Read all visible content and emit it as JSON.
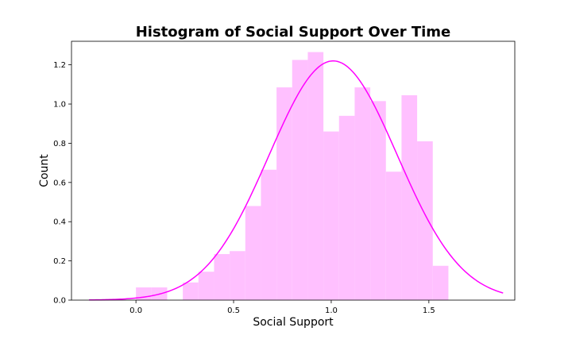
{
  "chart_data": {
    "type": "bar",
    "title": "Histogram of Social Support Over Time",
    "xlabel": "Social Support",
    "ylabel": "Count",
    "xlim": [
      -0.33,
      1.94
    ],
    "ylim": [
      0,
      1.32
    ],
    "xticks": [
      0.0,
      0.5,
      1.0,
      1.5
    ],
    "xtick_labels": [
      "0.0",
      "0.5",
      "1.0",
      "1.5"
    ],
    "yticks": [
      0.0,
      0.2,
      0.4,
      0.6,
      0.8,
      1.0,
      1.2
    ],
    "ytick_labels": [
      "0.0",
      "0.2",
      "0.4",
      "0.6",
      "0.8",
      "1.0",
      "1.2"
    ],
    "grid": false,
    "bar_color": "#ffc0ff",
    "curve_color": "#ff00ff",
    "bins": [
      {
        "x0": 0.0,
        "x1": 0.08,
        "value": 0.065
      },
      {
        "x0": 0.08,
        "x1": 0.16,
        "value": 0.065
      },
      {
        "x0": 0.16,
        "x1": 0.24,
        "value": 0.0
      },
      {
        "x0": 0.24,
        "x1": 0.32,
        "value": 0.09
      },
      {
        "x0": 0.32,
        "x1": 0.4,
        "value": 0.145
      },
      {
        "x0": 0.4,
        "x1": 0.48,
        "value": 0.235
      },
      {
        "x0": 0.48,
        "x1": 0.56,
        "value": 0.25
      },
      {
        "x0": 0.56,
        "x1": 0.64,
        "value": 0.48
      },
      {
        "x0": 0.64,
        "x1": 0.72,
        "value": 0.665
      },
      {
        "x0": 0.72,
        "x1": 0.8,
        "value": 1.085
      },
      {
        "x0": 0.8,
        "x1": 0.88,
        "value": 1.225
      },
      {
        "x0": 0.88,
        "x1": 0.96,
        "value": 1.265
      },
      {
        "x0": 0.96,
        "x1": 1.04,
        "value": 0.86
      },
      {
        "x0": 1.04,
        "x1": 1.12,
        "value": 0.94
      },
      {
        "x0": 1.12,
        "x1": 1.2,
        "value": 1.085
      },
      {
        "x0": 1.2,
        "x1": 1.28,
        "value": 1.015
      },
      {
        "x0": 1.28,
        "x1": 1.36,
        "value": 0.655
      },
      {
        "x0": 1.36,
        "x1": 1.44,
        "value": 1.045
      },
      {
        "x0": 1.44,
        "x1": 1.52,
        "value": 0.81
      },
      {
        "x0": 1.52,
        "x1": 1.6,
        "value": 0.175
      }
    ],
    "curve": {
      "type": "normal-pdf",
      "mean": 1.01,
      "sd": 0.328,
      "peak": 1.22,
      "x_range": [
        -0.24,
        1.88
      ]
    }
  }
}
